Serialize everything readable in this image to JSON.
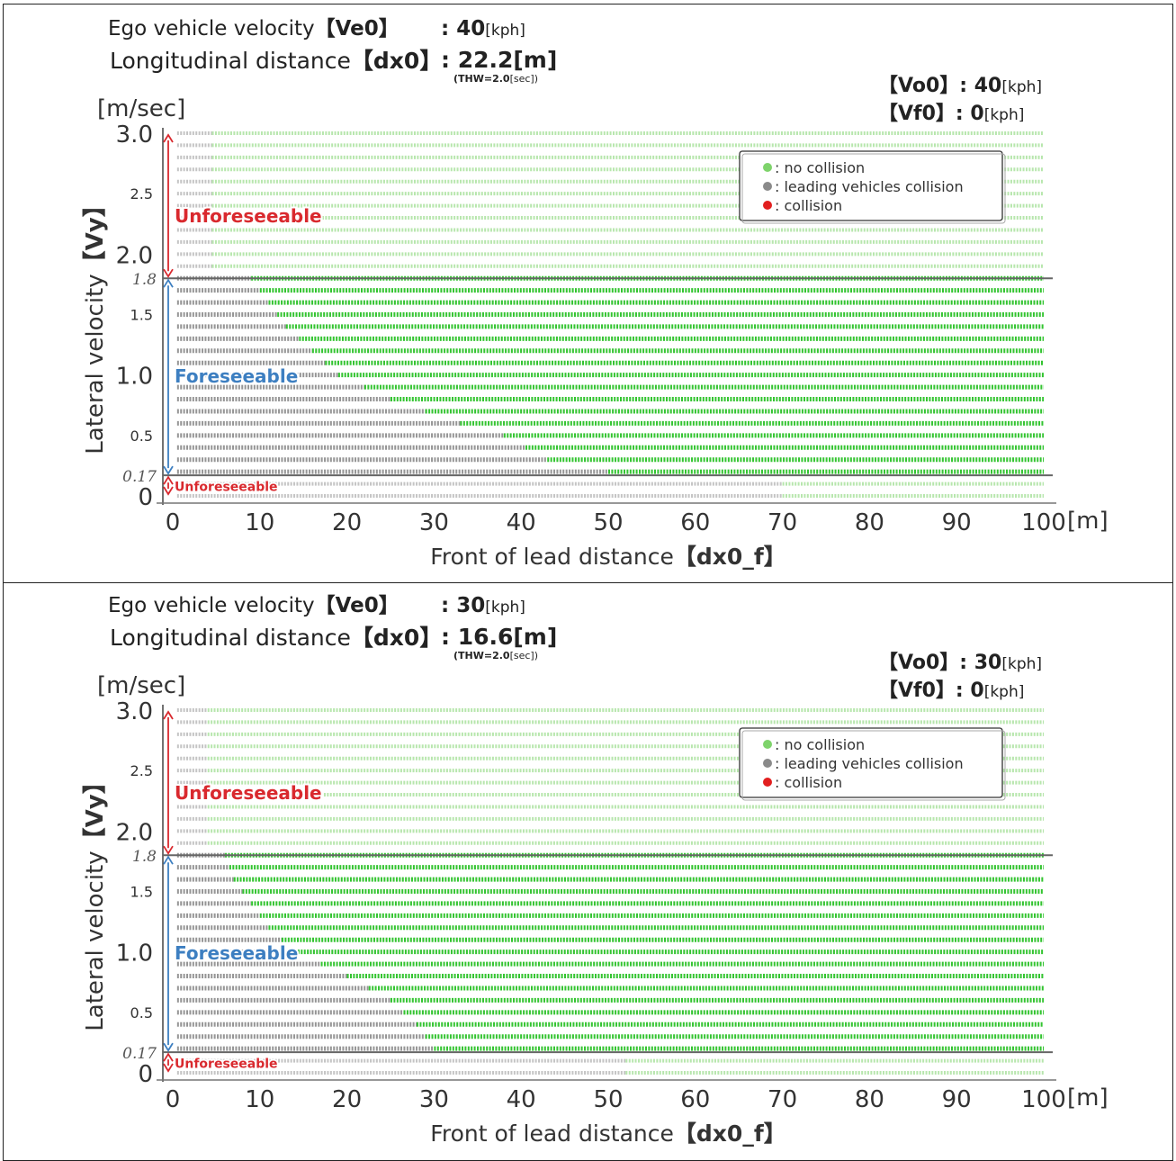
{
  "chart_data": [
    {
      "type": "scatter",
      "header": {
        "ve0_label": "Ego vehicle velocity",
        "ve0_key": "【Ve0】",
        "ve0_colon": ": ",
        "ve0_value": "40",
        "ve0_unit": "[kph]",
        "dx0_label": "Longitudinal distance",
        "dx0_key": "【dx0】",
        "dx0_colon": ": ",
        "dx0_value": "22.2[m]",
        "thw_note_a": "(THW=2.0",
        "thw_note_b": "[sec])",
        "vo0_key": "【Vo0】",
        "vo0_colon": ": ",
        "vo0_value": "40",
        "vo0_unit": "[kph]",
        "vf0_key": "【Vf0】",
        "vf0_colon": ":  ",
        "vf0_value": "0",
        "vf0_unit": "[kph]"
      },
      "ylabel": "Lateral velocity",
      "ylabel_key": "【Vy】",
      "yunit": "[m/sec]",
      "xlabel": "Front of lead distance",
      "xlabel_key": "【dx0_f】",
      "xunit": "[m]",
      "xlim": [
        0,
        100
      ],
      "ylim": [
        0,
        3.0
      ],
      "x_ticks": [
        "0",
        "10",
        "20",
        "30",
        "40",
        "50",
        "60",
        "70",
        "80",
        "90",
        "100"
      ],
      "y_ticks_major": [
        {
          "v": 0,
          "t": "0"
        },
        {
          "v": 1.0,
          "t": "1.0"
        },
        {
          "v": 2.0,
          "t": "2.0"
        },
        {
          "v": 3.0,
          "t": "3.0"
        }
      ],
      "y_ticks_minor": [
        {
          "v": 0.5,
          "t": "0.5"
        },
        {
          "v": 1.5,
          "t": "1.5"
        },
        {
          "v": 2.5,
          "t": "2.5"
        }
      ],
      "y_ticks_special": [
        {
          "v": 0.17,
          "t": "0.17"
        },
        {
          "v": 1.8,
          "t": "1.8"
        }
      ],
      "regions": [
        {
          "label": "Unforeseeable",
          "from": 1.8,
          "to": 3.0,
          "color": "#d9292e"
        },
        {
          "label": "Foreseeable",
          "from": 0.17,
          "to": 1.8,
          "color": "#3d7fc1"
        },
        {
          "label": "Unforeseeable",
          "from": 0,
          "to": 0.17,
          "color": "#d9292e"
        }
      ],
      "legend": {
        "position": "top-right",
        "items": [
          {
            "label": ": no collision",
            "color": "#7ed36b"
          },
          {
            "label": ": leading vehicles collision",
            "color": "#8a8a8a"
          },
          {
            "label": ": collision",
            "color": "#e21f1f"
          }
        ]
      },
      "series": [
        {
          "name": "leading vehicles collision",
          "color": "#8a8a8a",
          "boundary": [
            [
              0.1,
              4
            ],
            [
              1.8,
              9
            ],
            [
              1.6,
              11
            ],
            [
              1.4,
              13
            ],
            [
              1.2,
              16
            ],
            [
              1.0,
              19
            ],
            [
              0.8,
              25
            ],
            [
              0.6,
              33
            ],
            [
              0.5,
              38
            ],
            [
              0.3,
              43
            ],
            [
              0.2,
              50
            ]
          ]
        },
        {
          "name": "no collision",
          "color": "#7ed36b",
          "region": "right of boundary"
        }
      ]
    },
    {
      "type": "scatter",
      "header": {
        "ve0_label": "Ego vehicle velocity",
        "ve0_key": "【Ve0】",
        "ve0_colon": ": ",
        "ve0_value": "30",
        "ve0_unit": "[kph]",
        "dx0_label": "Longitudinal distance",
        "dx0_key": "【dx0】",
        "dx0_colon": ": ",
        "dx0_value": "16.6[m]",
        "thw_note_a": "(THW=2.0",
        "thw_note_b": "[sec])",
        "vo0_key": "【Vo0】",
        "vo0_colon": ": ",
        "vo0_value": "30",
        "vo0_unit": "[kph]",
        "vf0_key": "【Vf0】",
        "vf0_colon": ":  ",
        "vf0_value": "0",
        "vf0_unit": "[kph]"
      },
      "ylabel": "Lateral velocity",
      "ylabel_key": "【Vy】",
      "yunit": "[m/sec]",
      "xlabel": "Front of lead distance",
      "xlabel_key": "【dx0_f】",
      "xunit": "[m]",
      "xlim": [
        0,
        100
      ],
      "ylim": [
        0,
        3.0
      ],
      "x_ticks": [
        "0",
        "10",
        "20",
        "30",
        "40",
        "50",
        "60",
        "70",
        "80",
        "90",
        "100"
      ],
      "y_ticks_major": [
        {
          "v": 0,
          "t": "0"
        },
        {
          "v": 1.0,
          "t": "1.0"
        },
        {
          "v": 2.0,
          "t": "2.0"
        },
        {
          "v": 3.0,
          "t": "3.0"
        }
      ],
      "y_ticks_minor": [
        {
          "v": 0.5,
          "t": "0.5"
        },
        {
          "v": 1.5,
          "t": "1.5"
        },
        {
          "v": 2.5,
          "t": "2.5"
        }
      ],
      "y_ticks_special": [
        {
          "v": 0.17,
          "t": "0.17"
        },
        {
          "v": 1.8,
          "t": "1.8"
        }
      ],
      "regions": [
        {
          "label": "Unforeseeable",
          "from": 1.8,
          "to": 3.0,
          "color": "#d9292e"
        },
        {
          "label": "Foreseeable",
          "from": 0.17,
          "to": 1.8,
          "color": "#3d7fc1"
        },
        {
          "label": "Unforeseeable",
          "from": 0,
          "to": 0.17,
          "color": "#d9292e"
        }
      ],
      "legend": {
        "position": "top-right",
        "items": [
          {
            "label": ": no collision",
            "color": "#7ed36b"
          },
          {
            "label": ": leading vehicles collision",
            "color": "#8a8a8a"
          },
          {
            "label": ": collision",
            "color": "#e21f1f"
          }
        ]
      },
      "series": [
        {
          "name": "leading vehicles collision",
          "color": "#8a8a8a",
          "boundary": [
            [
              0.1,
              3
            ],
            [
              1.8,
              6
            ],
            [
              1.6,
              7
            ],
            [
              1.4,
              9
            ],
            [
              1.2,
              11
            ],
            [
              1.0,
              14
            ],
            [
              0.8,
              20
            ],
            [
              0.6,
              25
            ],
            [
              0.4,
              28
            ],
            [
              0.2,
              30
            ]
          ]
        },
        {
          "name": "no collision",
          "color": "#7ed36b",
          "region": "right of boundary"
        }
      ]
    }
  ]
}
